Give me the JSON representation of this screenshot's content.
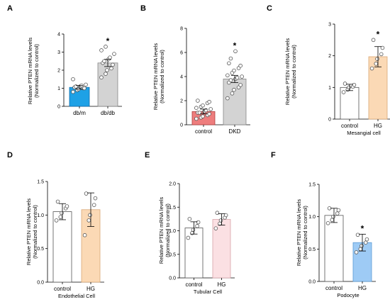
{
  "chart_data": [
    {
      "id": "A",
      "type": "bar",
      "panel_label": "A",
      "ylabel": [
        "Relative PTEN mRNA levels",
        "(Normalized to control)"
      ],
      "xlabel": "",
      "ylim": [
        0,
        4
      ],
      "yticks": [
        "0",
        "1",
        "2",
        "3",
        "4"
      ],
      "categories": [
        "db/m",
        "db/db"
      ],
      "values": [
        1.05,
        2.4
      ],
      "errors": [
        0.1,
        0.2
      ],
      "bar_fill": [
        "#1ea1e6",
        "#d3d3d3"
      ],
      "bar_stroke": [
        "#0e6fae",
        "#888888"
      ],
      "points": [
        [
          0.8,
          0.9,
          0.95,
          1.0,
          1.0,
          1.05,
          1.1,
          1.1,
          1.15,
          1.2,
          1.5
        ],
        [
          1.6,
          1.8,
          2.0,
          2.1,
          2.3,
          2.4,
          2.5,
          2.6,
          2.7,
          2.9,
          3.1,
          3.3
        ]
      ],
      "significance": [
        "",
        "*"
      ]
    },
    {
      "id": "B",
      "type": "bar",
      "panel_label": "B",
      "ylabel": [
        "Relative PTEN mRNA levels",
        "(Normalized to control)"
      ],
      "xlabel": "",
      "ylim": [
        0,
        8
      ],
      "yticks": [
        "0",
        "2",
        "4",
        "6",
        "8"
      ],
      "categories": [
        "control",
        "DKD"
      ],
      "values": [
        1.1,
        3.8
      ],
      "errors": [
        0.2,
        0.3
      ],
      "bar_fill": [
        "#ee7d7d",
        "#d3d3d3"
      ],
      "bar_stroke": [
        "#b04040",
        "#888888"
      ],
      "points": [
        [
          0.5,
          0.6,
          0.7,
          0.8,
          0.9,
          1.0,
          1.0,
          1.1,
          1.2,
          1.3,
          1.4,
          1.5,
          1.6,
          1.8,
          1.9,
          2.0
        ],
        [
          2.2,
          2.6,
          2.9,
          3.1,
          3.3,
          3.5,
          3.7,
          3.8,
          3.9,
          4.0,
          4.1,
          4.3,
          4.5,
          4.7,
          4.9,
          5.1,
          5.5,
          6.1
        ]
      ],
      "significance": [
        "",
        "*"
      ]
    },
    {
      "id": "C",
      "type": "bar",
      "panel_label": "C",
      "ylabel": [
        "Relative PTEN mRNA levels",
        "(Normalized to control)"
      ],
      "xlabel": "Mesangial cell",
      "ylim": [
        0,
        3
      ],
      "yticks": [
        "0",
        "1",
        "2",
        "3"
      ],
      "categories": [
        "control",
        "HG"
      ],
      "values": [
        1.0,
        1.97
      ],
      "errors": [
        0.1,
        0.32
      ],
      "bar_fill": [
        "#ffffff",
        "#fbd9b5"
      ],
      "bar_stroke": [
        "#555555",
        "#d9a877"
      ],
      "points": [
        [
          0.85,
          0.93,
          1.0,
          1.02,
          1.08,
          1.12
        ],
        [
          1.6,
          1.75,
          1.9,
          2.05,
          2.25,
          2.5
        ]
      ],
      "significance": [
        "",
        "*"
      ]
    },
    {
      "id": "D",
      "type": "bar",
      "panel_label": "D",
      "ylabel": [
        "Relative PTEN mRNA levels",
        "(Normalized to control)"
      ],
      "xlabel": "Endothelial Cell",
      "ylim": [
        0,
        1.5
      ],
      "yticks": [
        "0.0",
        "0.5",
        "1.0",
        "1.5"
      ],
      "categories": [
        "control",
        "HG"
      ],
      "values": [
        1.05,
        1.08
      ],
      "errors": [
        0.12,
        0.25
      ],
      "bar_fill": [
        "#ffffff",
        "#fbd9b5"
      ],
      "bar_stroke": [
        "#555555",
        "#d9a877"
      ],
      "points": [
        [
          0.92,
          0.97,
          1.03,
          1.1,
          1.13,
          1.2
        ],
        [
          0.7,
          0.92,
          1.0,
          1.15,
          1.25,
          1.32
        ]
      ],
      "significance": [
        "",
        ""
      ]
    },
    {
      "id": "E",
      "type": "bar",
      "panel_label": "E",
      "ylabel": [
        "Relative PTEN mRNA levels",
        "(Normalized to control)"
      ],
      "xlabel": "Tubular Cell",
      "ylim": [
        0,
        2
      ],
      "yticks": [
        "0.0",
        "0.5",
        "1.0",
        "1.5",
        "2.0"
      ],
      "categories": [
        "control",
        "HG"
      ],
      "values": [
        1.06,
        1.24
      ],
      "errors": [
        0.13,
        0.12
      ],
      "bar_fill": [
        "#ffffff",
        "#fbe0e3"
      ],
      "bar_stroke": [
        "#555555",
        "#d8a3a9"
      ],
      "points": [
        [
          0.85,
          0.95,
          1.02,
          1.1,
          1.18,
          1.25
        ],
        [
          1.05,
          1.15,
          1.22,
          1.28,
          1.33,
          1.38
        ]
      ],
      "significance": [
        "",
        ""
      ]
    },
    {
      "id": "F",
      "type": "bar",
      "panel_label": "F",
      "ylabel": [
        "Relative PTEN mRNA levels",
        "(Normalized to control)"
      ],
      "xlabel": "Podocyte",
      "ylim": [
        0,
        1.5
      ],
      "yticks": [
        "0.0",
        "0.5",
        "1.0",
        "1.5"
      ],
      "categories": [
        "control",
        "HG"
      ],
      "values": [
        1.02,
        0.6
      ],
      "errors": [
        0.11,
        0.13
      ],
      "bar_fill": [
        "#ffffff",
        "#9ecbf5"
      ],
      "bar_stroke": [
        "#555555",
        "#5a9ad6"
      ],
      "points": [
        [
          0.9,
          0.95,
          1.0,
          1.05,
          1.1,
          1.13
        ],
        [
          0.45,
          0.5,
          0.55,
          0.6,
          0.65,
          0.72
        ]
      ],
      "significance": [
        "",
        "*"
      ]
    }
  ]
}
